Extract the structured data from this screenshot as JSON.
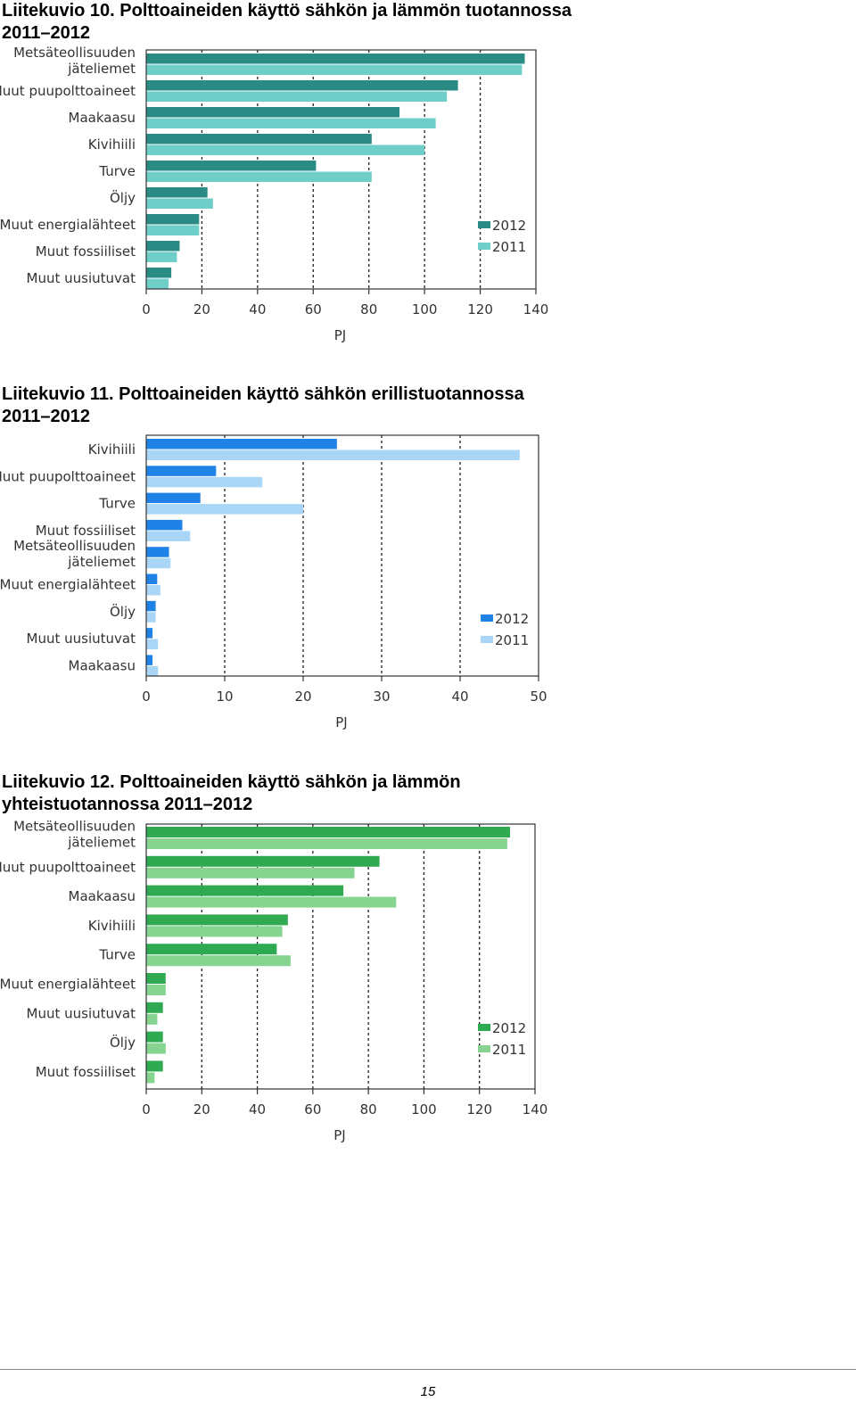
{
  "figures": [
    {
      "title_line1": "Liitekuvio 10. Polttoaineiden käyttö sähkön ja lämmön tuotannossa",
      "title_line2": "2011–2012"
    },
    {
      "title_line1": "Liitekuvio 11. Polttoaineiden käyttö sähkön erillistuotannossa",
      "title_line2": "2011–2012"
    },
    {
      "title_line1": "Liitekuvio 12. Polttoaineiden käyttö sähkön ja lämmön",
      "title_line2": "yhteistuotannossa 2011–2012"
    }
  ],
  "chart_data": [
    {
      "type": "bar",
      "orientation": "horizontal",
      "categories": [
        [
          "Metsäteollisuuden",
          "jäteliemet"
        ],
        [
          "Muut puupolttoaineet"
        ],
        [
          "Maakaasu"
        ],
        [
          "Kivihiili"
        ],
        [
          "Turve"
        ],
        [
          "Öljy"
        ],
        [
          "Muut energialähteet"
        ],
        [
          "Muut fossiiliset"
        ],
        [
          "Muut uusiutuvat"
        ]
      ],
      "series": [
        {
          "name": "2012",
          "color": "#2a8a84",
          "values": [
            136,
            112,
            91,
            81,
            61,
            22,
            19,
            12,
            9
          ]
        },
        {
          "name": "2011",
          "color": "#6fcfc8",
          "values": [
            135,
            108,
            104,
            100,
            81,
            24,
            19,
            11,
            8
          ]
        }
      ],
      "xlabel": "PJ",
      "xlim": [
        0,
        140
      ],
      "xticks": [
        0,
        20,
        40,
        60,
        80,
        100,
        120,
        140
      ],
      "legend_position": "right",
      "grid": "vertical dashed"
    },
    {
      "type": "bar",
      "orientation": "horizontal",
      "categories": [
        [
          "Kivihiili"
        ],
        [
          "Muut puupolttoaineet"
        ],
        [
          "Turve"
        ],
        [
          "Muut fossiiliset"
        ],
        [
          "Metsäteollisuuden",
          "jäteliemet"
        ],
        [
          "Muut energialähteet"
        ],
        [
          "Öljy"
        ],
        [
          "Muut uusiutuvat"
        ],
        [
          "Maakaasu"
        ]
      ],
      "series": [
        {
          "name": "2012",
          "color": "#1e82e6",
          "values": [
            24.3,
            8.9,
            6.9,
            4.6,
            2.9,
            1.4,
            1.2,
            0.8,
            0.8
          ]
        },
        {
          "name": "2011",
          "color": "#a9d6f7",
          "values": [
            47.6,
            14.8,
            20.0,
            5.6,
            3.1,
            1.8,
            1.2,
            1.5,
            1.5
          ]
        }
      ],
      "xlabel": "PJ",
      "xlim": [
        0,
        50
      ],
      "xticks": [
        0,
        10,
        20,
        30,
        40,
        50
      ],
      "legend_position": "right",
      "grid": "vertical dashed"
    },
    {
      "type": "bar",
      "orientation": "horizontal",
      "categories": [
        [
          "Metsäteollisuuden",
          "jäteliemet"
        ],
        [
          "Muut puupolttoaineet"
        ],
        [
          "Maakaasu"
        ],
        [
          "Kivihiili"
        ],
        [
          "Turve"
        ],
        [
          "Muut energialähteet"
        ],
        [
          "Muut uusiutuvat"
        ],
        [
          "Öljy"
        ],
        [
          "Muut fossiiliset"
        ]
      ],
      "series": [
        {
          "name": "2012",
          "color": "#2faa52",
          "values": [
            131,
            84,
            71,
            51,
            47,
            7,
            6,
            6,
            6
          ]
        },
        {
          "name": "2011",
          "color": "#86d490",
          "values": [
            130,
            75,
            90,
            49,
            52,
            7,
            4,
            7,
            3
          ]
        }
      ],
      "xlabel": "PJ",
      "xlim": [
        0,
        140
      ],
      "xticks": [
        0,
        20,
        40,
        60,
        80,
        100,
        120,
        140
      ],
      "legend_position": "right",
      "grid": "vertical dashed"
    }
  ],
  "page_number": "15"
}
